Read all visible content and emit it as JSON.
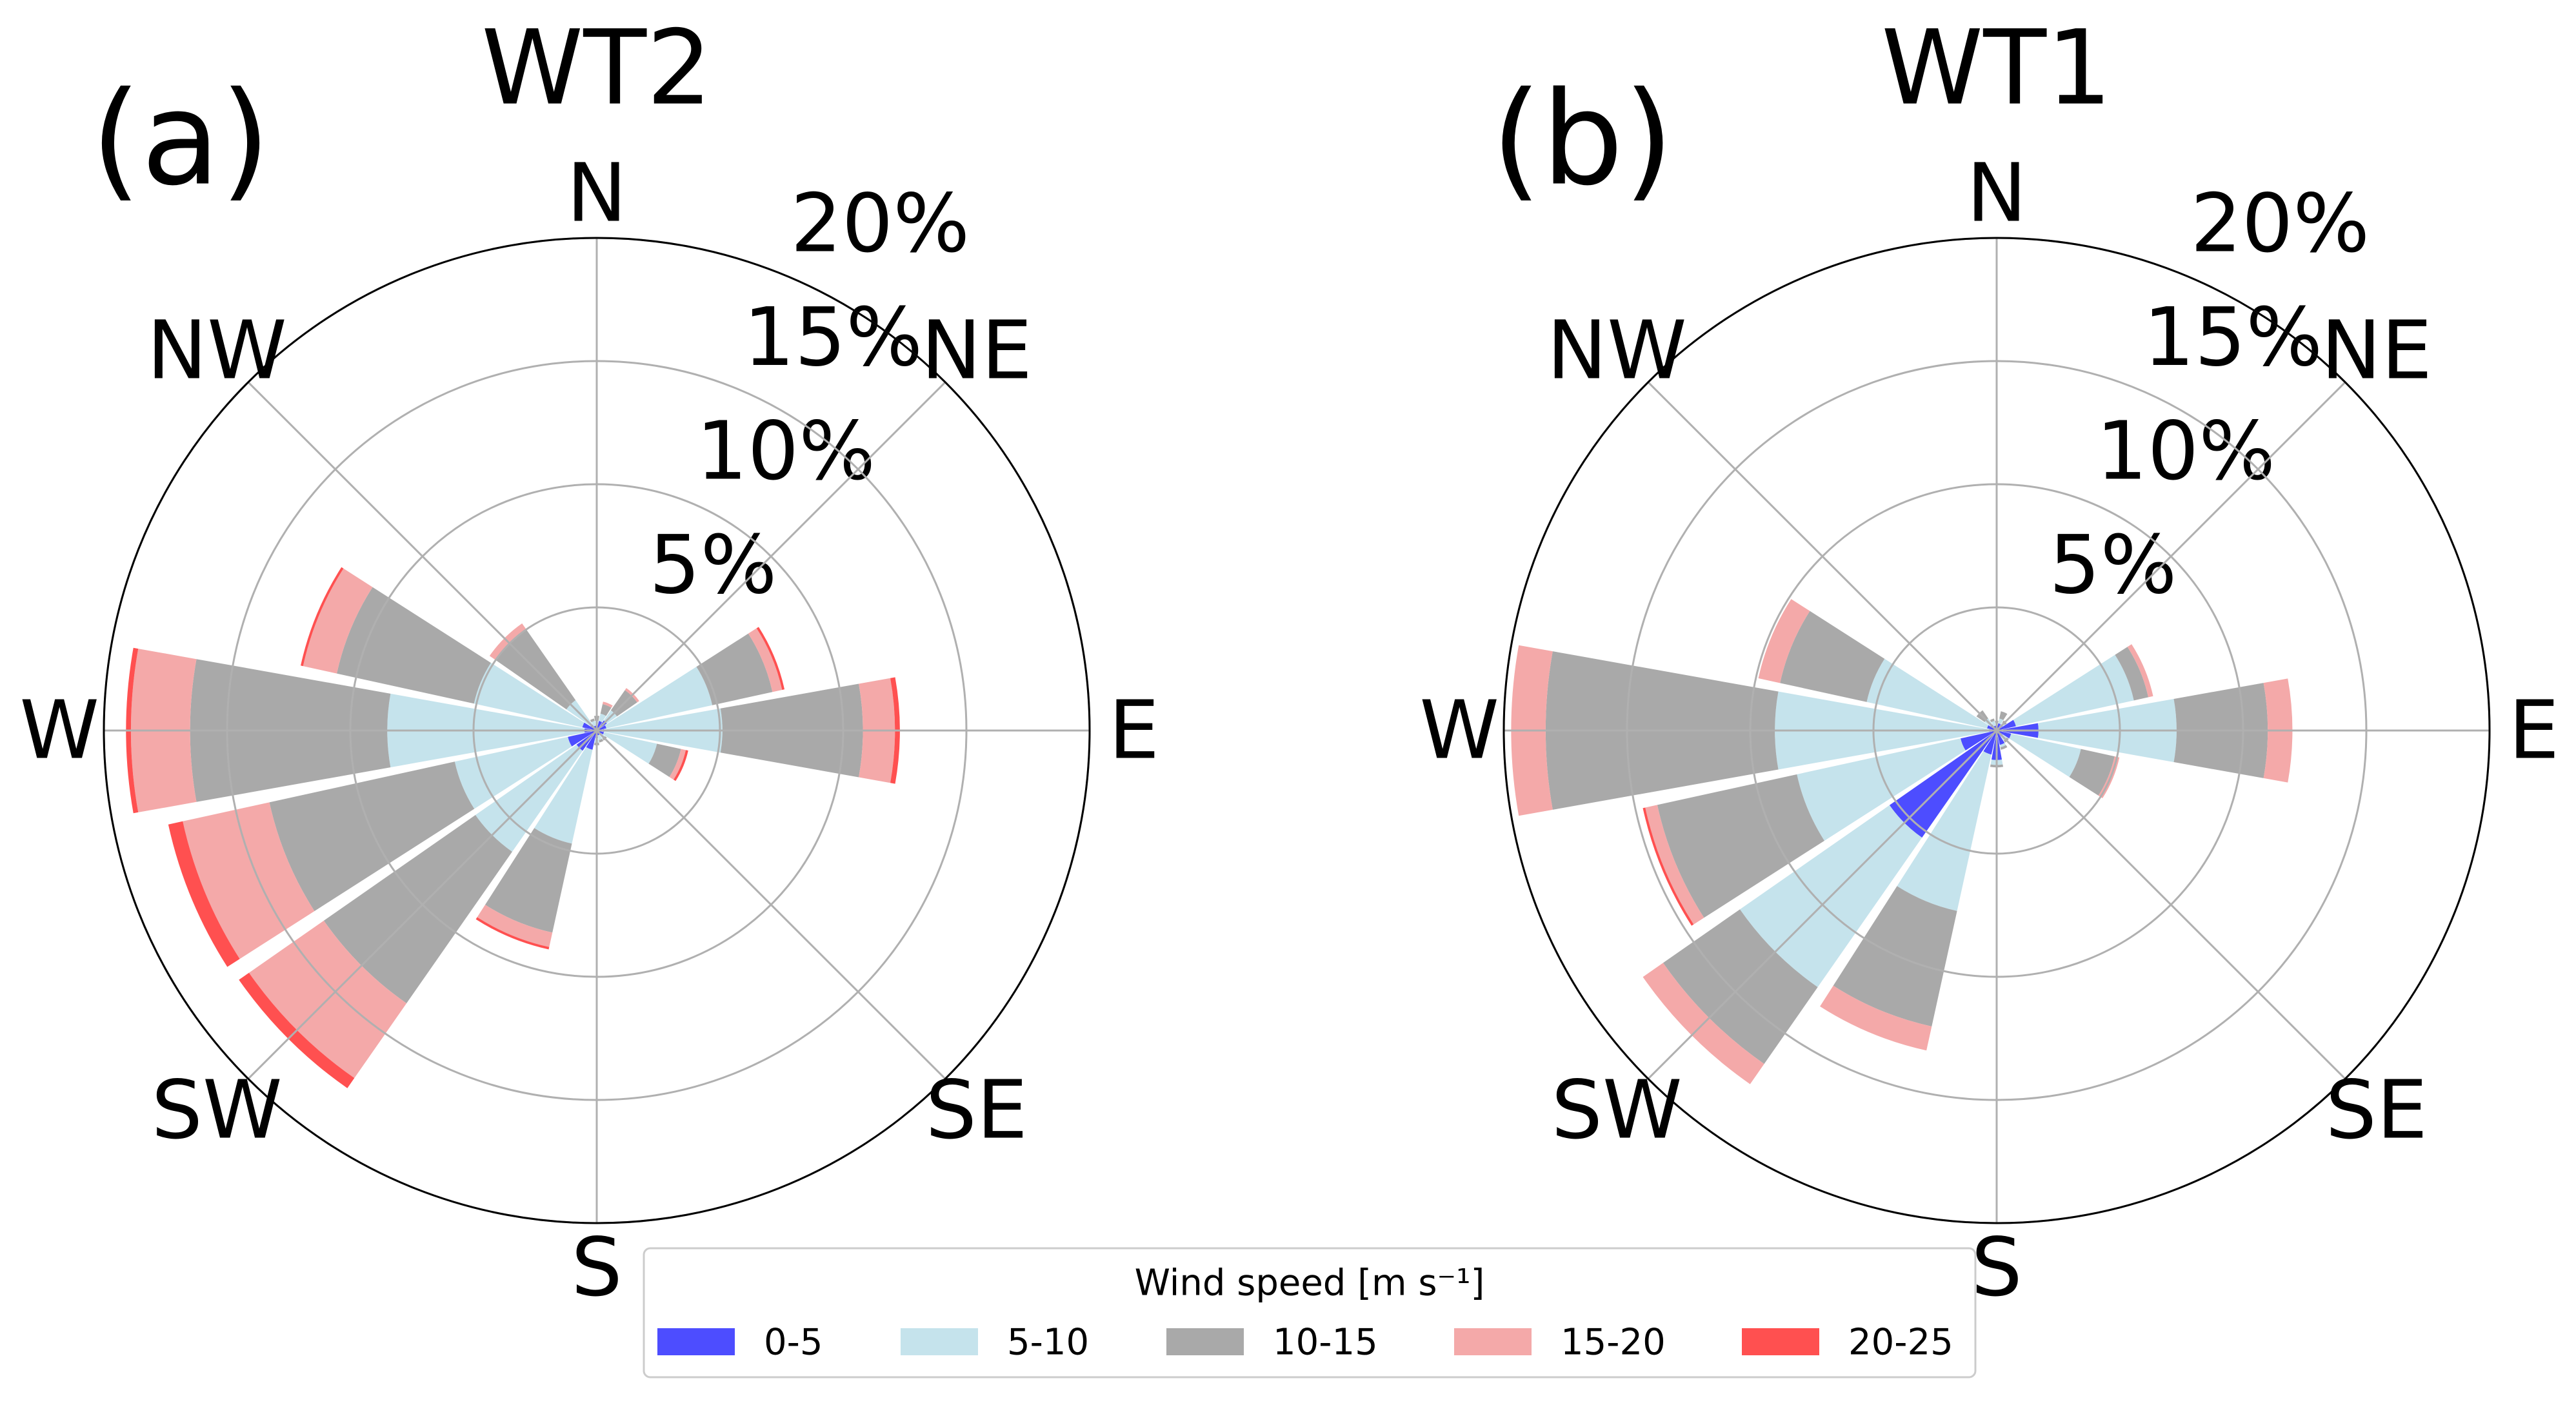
{
  "chart_data": [
    {
      "type": "windrose",
      "panel_label": "(a)",
      "title": "WT2",
      "categories": [
        "N",
        null,
        "NE",
        null,
        "E",
        null,
        "SE",
        null,
        "S",
        null,
        "SW",
        null,
        "W",
        null,
        "NW",
        null
      ],
      "ylim": [
        0,
        20
      ],
      "yticks": [
        {
          "value": 5,
          "label": "5%"
        },
        {
          "value": 10,
          "label": "10%"
        },
        {
          "value": 15,
          "label": "15%"
        },
        {
          "value": 20,
          "label": "20%"
        }
      ],
      "grid": true,
      "legend_title": "Wind speed [m s⁻¹]",
      "legend": "lower center",
      "series": [
        {
          "name": "0-5",
          "color": "#4d4dff",
          "values": [
            0.2,
            0.4,
            0.5,
            0.4,
            0.3,
            0.3,
            0.2,
            0.2,
            0.3,
            0.8,
            1.0,
            1.2,
            0.5,
            0.6,
            0.3,
            0.2
          ]
        },
        {
          "name": "5-10",
          "color": "#c5e3ec",
          "values": [
            0.2,
            0.3,
            0.5,
            4.4,
            4.8,
            2.2,
            0.2,
            0.2,
            0.2,
            3.9,
            5.0,
            4.7,
            8.0,
            4.5,
            1.2,
            0.2
          ]
        },
        {
          "name": "10-15",
          "color": "#a9a9a9",
          "values": [
            0.2,
            0.4,
            1.0,
            2.5,
            5.7,
            1.0,
            0.1,
            0.1,
            0.1,
            3.7,
            7.5,
            7.7,
            8.0,
            5.7,
            3.5,
            0.1
          ]
        },
        {
          "name": "15-20",
          "color": "#f4a9a9",
          "values": [
            0,
            0.1,
            0.1,
            0.4,
            1.3,
            0.2,
            0,
            0,
            0,
            0.6,
            3.7,
            3.6,
            2.4,
            1.4,
            0.3,
            0
          ]
        },
        {
          "name": "20-25",
          "color": "#ff5050",
          "values": [
            0,
            0,
            0,
            0.1,
            0.2,
            0.1,
            0,
            0,
            0,
            0.1,
            0.5,
            0.6,
            0.2,
            0.1,
            0,
            0
          ]
        }
      ]
    },
    {
      "type": "windrose",
      "panel_label": "(b)",
      "title": "WT1",
      "categories": [
        "N",
        null,
        "NE",
        null,
        "E",
        null,
        "SE",
        null,
        "S",
        null,
        "SW",
        null,
        "W",
        null,
        "NW",
        null
      ],
      "ylim": [
        0,
        20
      ],
      "yticks": [
        {
          "value": 5,
          "label": "5%"
        },
        {
          "value": 10,
          "label": "10%"
        },
        {
          "value": 15,
          "label": "15%"
        },
        {
          "value": 20,
          "label": "20%"
        }
      ],
      "grid": true,
      "series": [
        {
          "name": "0-5",
          "color": "#4d4dff",
          "values": [
            0.2,
            0.3,
            0.3,
            0.8,
            1.7,
            0.6,
            0.3,
            0.6,
            1.2,
            1.0,
            5.3,
            1.5,
            0.3,
            0.4,
            0.3,
            0.2
          ]
        },
        {
          "name": "5-10",
          "color": "#c5e3ec",
          "values": [
            0.1,
            0.2,
            0.1,
            4.9,
            5.6,
            2.9,
            0.2,
            0.1,
            0.2,
            6.5,
            7.4,
            6.8,
            8.7,
            5.0,
            0.3,
            0.2
          ]
        },
        {
          "name": "10-15",
          "color": "#a9a9a9",
          "values": [
            0.1,
            0.3,
            0.1,
            0.6,
            3.7,
            1.4,
            0.1,
            0.1,
            0.1,
            4.8,
            3.8,
            5.8,
            9.3,
            3.6,
            0.4,
            0.1
          ]
        },
        {
          "name": "15-20",
          "color": "#f4a9a9",
          "values": [
            0,
            0,
            0,
            0.2,
            1.0,
            0.2,
            0,
            0,
            0,
            1.0,
            1.0,
            0.5,
            1.4,
            0.9,
            0,
            0
          ]
        },
        {
          "name": "20-25",
          "color": "#ff5050",
          "values": [
            0,
            0,
            0,
            0,
            0,
            0,
            0,
            0,
            0,
            0,
            0,
            0.1,
            0,
            0,
            0,
            0
          ]
        }
      ]
    }
  ]
}
